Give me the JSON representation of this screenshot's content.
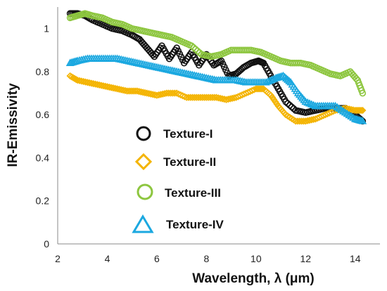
{
  "chart_data": {
    "type": "scatter",
    "xlabel": "Wavelength, λ (μm)",
    "ylabel": "IR-Emissivity",
    "xlim": [
      2,
      15
    ],
    "ylim": [
      0,
      1.1
    ],
    "x_ticks": [
      "2",
      "4",
      "6",
      "8",
      "10",
      "12",
      "14"
    ],
    "y_ticks": [
      "0",
      "0.2",
      "0.4",
      "0.6",
      "0.8",
      "1"
    ],
    "grid": false,
    "legend_position": "center-left",
    "series": [
      {
        "name": "Texture-I",
        "color": "#111111",
        "marker": "circle",
        "points": [
          [
            2.5,
            1.07
          ],
          [
            2.8,
            1.07
          ],
          [
            3.1,
            1.06
          ],
          [
            3.4,
            1.04
          ],
          [
            3.8,
            1.02
          ],
          [
            4.2,
            1.0
          ],
          [
            4.6,
            0.99
          ],
          [
            5.0,
            0.97
          ],
          [
            5.3,
            0.95
          ],
          [
            5.6,
            0.91
          ],
          [
            5.9,
            0.87
          ],
          [
            6.2,
            0.92
          ],
          [
            6.5,
            0.86
          ],
          [
            6.8,
            0.91
          ],
          [
            7.1,
            0.84
          ],
          [
            7.4,
            0.89
          ],
          [
            7.7,
            0.83
          ],
          [
            8.0,
            0.88
          ],
          [
            8.3,
            0.83
          ],
          [
            8.6,
            0.85
          ],
          [
            8.9,
            0.78
          ],
          [
            9.2,
            0.79
          ],
          [
            9.5,
            0.82
          ],
          [
            9.8,
            0.84
          ],
          [
            10.1,
            0.85
          ],
          [
            10.3,
            0.84
          ],
          [
            10.6,
            0.78
          ],
          [
            10.9,
            0.72
          ],
          [
            11.2,
            0.66
          ],
          [
            11.6,
            0.62
          ],
          [
            12.0,
            0.61
          ],
          [
            12.4,
            0.62
          ],
          [
            12.8,
            0.63
          ],
          [
            13.2,
            0.63
          ],
          [
            13.6,
            0.63
          ],
          [
            14.0,
            0.6
          ],
          [
            14.3,
            0.57
          ]
        ]
      },
      {
        "name": "Texture-II",
        "color": "#f4b400",
        "marker": "diamond",
        "points": [
          [
            2.5,
            0.78
          ],
          [
            2.8,
            0.76
          ],
          [
            3.2,
            0.75
          ],
          [
            3.6,
            0.74
          ],
          [
            4.0,
            0.73
          ],
          [
            4.4,
            0.72
          ],
          [
            4.8,
            0.71
          ],
          [
            5.2,
            0.71
          ],
          [
            5.6,
            0.7
          ],
          [
            6.0,
            0.69
          ],
          [
            6.4,
            0.7
          ],
          [
            6.8,
            0.7
          ],
          [
            7.2,
            0.68
          ],
          [
            7.6,
            0.68
          ],
          [
            8.0,
            0.68
          ],
          [
            8.4,
            0.68
          ],
          [
            8.8,
            0.67
          ],
          [
            9.2,
            0.68
          ],
          [
            9.6,
            0.7
          ],
          [
            10.0,
            0.72
          ],
          [
            10.3,
            0.72
          ],
          [
            10.6,
            0.69
          ],
          [
            10.9,
            0.64
          ],
          [
            11.2,
            0.6
          ],
          [
            11.6,
            0.57
          ],
          [
            12.0,
            0.57
          ],
          [
            12.4,
            0.58
          ],
          [
            12.8,
            0.6
          ],
          [
            13.2,
            0.62
          ],
          [
            13.6,
            0.63
          ],
          [
            14.0,
            0.62
          ],
          [
            14.3,
            0.62
          ]
        ]
      },
      {
        "name": "Texture-III",
        "color": "#8dc63f",
        "marker": "circle",
        "points": [
          [
            2.5,
            1.05
          ],
          [
            2.8,
            1.06
          ],
          [
            3.1,
            1.07
          ],
          [
            3.4,
            1.06
          ],
          [
            3.8,
            1.05
          ],
          [
            4.2,
            1.03
          ],
          [
            4.6,
            1.02
          ],
          [
            5.0,
            1.0
          ],
          [
            5.4,
            0.99
          ],
          [
            5.8,
            0.98
          ],
          [
            6.2,
            0.97
          ],
          [
            6.6,
            0.96
          ],
          [
            7.0,
            0.94
          ],
          [
            7.4,
            0.92
          ],
          [
            7.8,
            0.88
          ],
          [
            8.2,
            0.87
          ],
          [
            8.6,
            0.88
          ],
          [
            9.0,
            0.9
          ],
          [
            9.4,
            0.9
          ],
          [
            9.8,
            0.9
          ],
          [
            10.2,
            0.89
          ],
          [
            10.6,
            0.87
          ],
          [
            11.0,
            0.85
          ],
          [
            11.4,
            0.84
          ],
          [
            11.8,
            0.84
          ],
          [
            12.2,
            0.83
          ],
          [
            12.6,
            0.81
          ],
          [
            13.0,
            0.79
          ],
          [
            13.4,
            0.78
          ],
          [
            13.8,
            0.8
          ],
          [
            14.1,
            0.76
          ],
          [
            14.3,
            0.7
          ]
        ]
      },
      {
        "name": "Texture-IV",
        "color": "#1ba8e0",
        "marker": "triangle",
        "points": [
          [
            2.5,
            0.84
          ],
          [
            2.8,
            0.85
          ],
          [
            3.2,
            0.86
          ],
          [
            3.6,
            0.86
          ],
          [
            4.0,
            0.86
          ],
          [
            4.4,
            0.86
          ],
          [
            4.8,
            0.85
          ],
          [
            5.2,
            0.84
          ],
          [
            5.6,
            0.83
          ],
          [
            6.0,
            0.82
          ],
          [
            6.4,
            0.81
          ],
          [
            6.8,
            0.8
          ],
          [
            7.2,
            0.79
          ],
          [
            7.6,
            0.78
          ],
          [
            8.0,
            0.77
          ],
          [
            8.4,
            0.76
          ],
          [
            8.8,
            0.76
          ],
          [
            9.2,
            0.76
          ],
          [
            9.6,
            0.75
          ],
          [
            10.0,
            0.75
          ],
          [
            10.4,
            0.75
          ],
          [
            10.8,
            0.77
          ],
          [
            11.1,
            0.78
          ],
          [
            11.4,
            0.75
          ],
          [
            11.7,
            0.7
          ],
          [
            12.0,
            0.66
          ],
          [
            12.4,
            0.64
          ],
          [
            12.8,
            0.64
          ],
          [
            13.2,
            0.64
          ],
          [
            13.6,
            0.61
          ],
          [
            14.0,
            0.58
          ],
          [
            14.3,
            0.57
          ]
        ]
      }
    ]
  }
}
